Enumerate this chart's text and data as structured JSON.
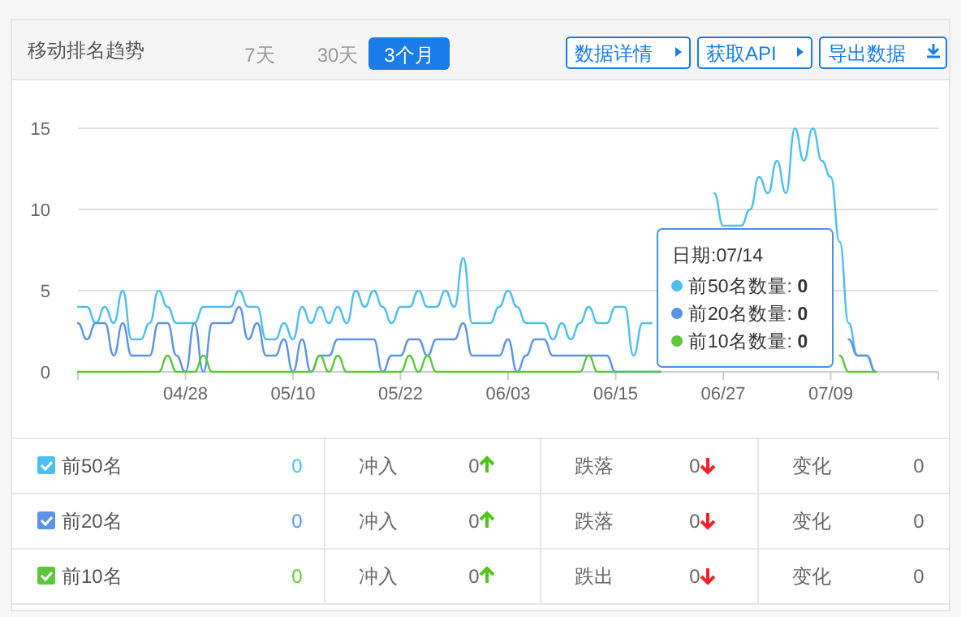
{
  "chart_data": {
    "type": "line",
    "title": "移动排名趋势",
    "x": [
      "--04-16",
      "--04-17",
      "--04-18",
      "--04-19",
      "--04-20",
      "--04-21",
      "--04-22",
      "--04-23",
      "--04-24",
      "--04-25",
      "--04-26",
      "--04-27",
      "--04-28",
      "--04-29",
      "--04-30",
      "--05-01",
      "--05-02",
      "--05-03",
      "--05-04",
      "--05-05",
      "--05-06",
      "--05-07",
      "--05-08",
      "--05-09",
      "--05-10",
      "--05-11",
      "--05-12",
      "--05-13",
      "--05-14",
      "--05-15",
      "--05-16",
      "--05-17",
      "--05-18",
      "--05-19",
      "--05-20",
      "--05-21",
      "--05-22",
      "--05-23",
      "--05-24",
      "--05-25",
      "--05-26",
      "--05-27",
      "--05-28",
      "--05-29",
      "--05-30",
      "--05-31",
      "--06-01",
      "--06-02",
      "--06-03",
      "--06-04",
      "--06-05",
      "--06-06",
      "--06-07",
      "--06-08",
      "--06-09",
      "--06-10",
      "--06-11",
      "--06-12",
      "--06-13",
      "--06-14",
      "--06-15",
      "--06-16",
      "--06-17",
      "--06-18",
      "--06-19",
      "--06-20",
      "--06-26",
      "--06-27",
      "--06-28",
      "--06-29",
      "--06-30",
      "--07-01",
      "--07-02",
      "--07-03",
      "--07-04",
      "--07-05",
      "--07-06",
      "--07-07",
      "--07-08",
      "--07-09",
      "--07-10",
      "--07-11",
      "--07-12",
      "--07-13",
      "--07-14"
    ],
    "xlim": [
      "--04-16",
      "--07-21"
    ],
    "xticks": [
      {
        "value": "--04-16",
        "label": null
      },
      {
        "value": "--04-28",
        "label": "04/28"
      },
      {
        "value": "--05-10",
        "label": "05/10"
      },
      {
        "value": "--05-22",
        "label": "05/22"
      },
      {
        "value": "--06-03",
        "label": "06/03"
      },
      {
        "value": "--06-15",
        "label": "06/15"
      },
      {
        "value": "--06-27",
        "label": "06/27"
      },
      {
        "value": "--07-09",
        "label": "07/09"
      },
      {
        "value": "--07-21",
        "label": null
      }
    ],
    "ylim": [
      0,
      15
    ],
    "yticks": [
      0,
      5,
      10,
      15
    ],
    "grid": "y",
    "legend": "bottom",
    "series": [
      {
        "name": "前50名",
        "color": "#4dbfec",
        "values": [
          4,
          4,
          3,
          4,
          3,
          5,
          2,
          2,
          3,
          5,
          4,
          3,
          3,
          3,
          4,
          4,
          4,
          4,
          5,
          4,
          4,
          2,
          2,
          3,
          2,
          4,
          3,
          4,
          3,
          4,
          3,
          5,
          4,
          5,
          4,
          3,
          4,
          4,
          5,
          4,
          4,
          5,
          4,
          7,
          3,
          3,
          3,
          4,
          5,
          4,
          3,
          3,
          3,
          2,
          3,
          2,
          3,
          4,
          3,
          3,
          4,
          4,
          1,
          3,
          3,
          null,
          11,
          9,
          9,
          9,
          10,
          12,
          11,
          13,
          11,
          15,
          13,
          15,
          13,
          12,
          8,
          3,
          1,
          1,
          0
        ]
      },
      {
        "name": "前20名",
        "color": "#5b93e6",
        "values": [
          3,
          2,
          3,
          3,
          1,
          3,
          1,
          1,
          1,
          3,
          3,
          1,
          0,
          3,
          0,
          3,
          3,
          3,
          4,
          2,
          3,
          1,
          1,
          2,
          0,
          2,
          0,
          1,
          1,
          2,
          2,
          2,
          2,
          2,
          0,
          1,
          1,
          2,
          2,
          1,
          2,
          2,
          2,
          3,
          1,
          1,
          1,
          1,
          2,
          0,
          1,
          2,
          2,
          1,
          1,
          1,
          1,
          1,
          1,
          1,
          0,
          0,
          0,
          0,
          0,
          0,
          null,
          null,
          null,
          null,
          null,
          null,
          null,
          null,
          null,
          null,
          null,
          null,
          null,
          null,
          null,
          2,
          1,
          1,
          0
        ]
      },
      {
        "name": "前10名",
        "color": "#5cc63c",
        "values": [
          0,
          0,
          0,
          0,
          0,
          0,
          0,
          0,
          0,
          0,
          1,
          0,
          0,
          0,
          1,
          0,
          0,
          0,
          0,
          0,
          0,
          0,
          0,
          0,
          0,
          0,
          0,
          1,
          0,
          1,
          0,
          0,
          0,
          0,
          0,
          0,
          0,
          1,
          0,
          1,
          0,
          0,
          0,
          0,
          0,
          0,
          0,
          0,
          0,
          0,
          0,
          0,
          0,
          0,
          0,
          0,
          0,
          1,
          0,
          0,
          0,
          0,
          0,
          0,
          0,
          0,
          null,
          null,
          null,
          null,
          null,
          null,
          null,
          null,
          null,
          null,
          null,
          null,
          null,
          null,
          1,
          0,
          0,
          0,
          0
        ]
      }
    ],
    "annotations": [
      "7天",
      "30天",
      "3个月",
      "数据详情",
      "获取API",
      "导出数据",
      "日期:07/14",
      "前50名数量: 0",
      "前20名数量: 0",
      "前10名数量: 0",
      "0",
      "冲入",
      "0",
      "跌落",
      "0",
      "变化",
      "0",
      "0",
      "冲入",
      "0",
      "跌落",
      "0",
      "变化",
      "0",
      "0",
      "冲入",
      "0",
      "跌出",
      "0",
      "变化",
      "0"
    ]
  }
}
